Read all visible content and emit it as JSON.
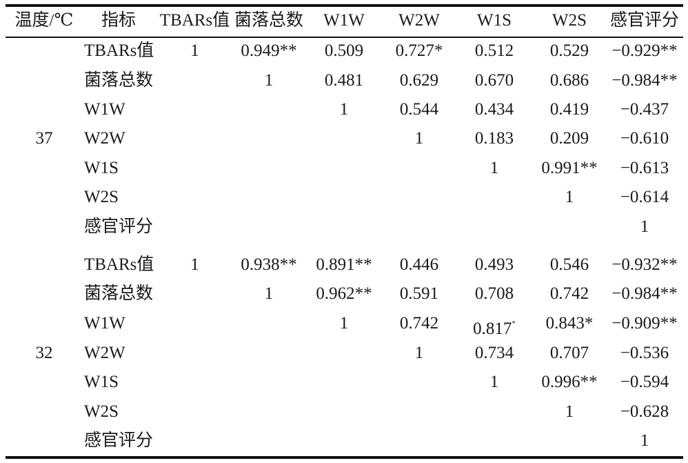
{
  "headers": [
    "温度/℃",
    "指标",
    "TBARs值",
    "菌落总数",
    "W1W",
    "W2W",
    "W1S",
    "W2S",
    "感官评分"
  ],
  "groups": [
    {
      "temperature": "37",
      "rows": [
        {
          "indicator": "TBARs值",
          "cells": [
            "1",
            "0.949**",
            "0.509",
            "0.727*",
            "0.512",
            "0.529",
            "−0.929**"
          ]
        },
        {
          "indicator": "菌落总数",
          "cells": [
            "",
            "1",
            "0.481",
            "0.629",
            "0.670",
            "0.686",
            "−0.984**"
          ]
        },
        {
          "indicator": "W1W",
          "cells": [
            "",
            "",
            "1",
            "0.544",
            "0.434",
            "0.419",
            "−0.437"
          ]
        },
        {
          "indicator": "W2W",
          "cells": [
            "",
            "",
            "",
            "1",
            "0.183",
            "0.209",
            "−0.610"
          ]
        },
        {
          "indicator": "W1S",
          "cells": [
            "",
            "",
            "",
            "",
            "1",
            "0.991**",
            "−0.613"
          ]
        },
        {
          "indicator": "W2S",
          "cells": [
            "",
            "",
            "",
            "",
            "",
            "1",
            "−0.614"
          ]
        },
        {
          "indicator": "感官评分",
          "cells": [
            "",
            "",
            "",
            "",
            "",
            "",
            "1"
          ]
        }
      ]
    },
    {
      "temperature": "32",
      "rows": [
        {
          "indicator": "TBARs值",
          "cells": [
            "1",
            "0.938**",
            "0.891**",
            "0.446",
            "0.493",
            "0.546",
            "−0.932**"
          ]
        },
        {
          "indicator": "菌落总数",
          "cells": [
            "",
            "1",
            "0.962**",
            "0.591",
            "0.708",
            "0.742",
            "−0.984**"
          ]
        },
        {
          "indicator": "W1W",
          "cells": [
            "",
            "",
            "1",
            "0.742",
            "0.817",
            "0.843*",
            "−0.909**"
          ]
        },
        {
          "indicator": "W2W",
          "cells": [
            "",
            "",
            "",
            "1",
            "0.734",
            "0.707",
            "−0.536"
          ]
        },
        {
          "indicator": "W1S",
          "cells": [
            "",
            "",
            "",
            "",
            "1",
            "0.996**",
            "−0.594"
          ]
        },
        {
          "indicator": "W2S",
          "cells": [
            "",
            "",
            "",
            "",
            "",
            "1",
            "−0.628"
          ]
        },
        {
          "indicator": "感官评分",
          "cells": [
            "",
            "",
            "",
            "",
            "",
            "",
            "1"
          ]
        }
      ],
      "superscript_mark": "*"
    }
  ]
}
